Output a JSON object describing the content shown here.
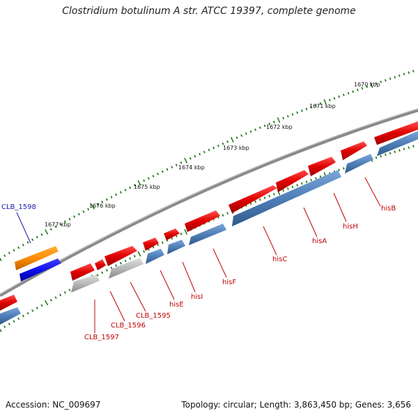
{
  "title": "Clostridium botulinum A str. ATCC 19397, complete genome",
  "footer": {
    "accession": "Accession: NC_009697",
    "topology": "Topology: circular; Length: 3,863,450 bp; Genes: 3,656"
  },
  "ruler": {
    "unit": "kbp",
    "labels": [
      "1670 kbp",
      "1671 kbp",
      "1672 kbp",
      "1673 kbp",
      "1674 kbp",
      "1675 kbp",
      "1676 kbp",
      "1677 kbp"
    ]
  },
  "genes": [
    {
      "name": "hisB",
      "color": "#e00000",
      "secondary_color": "#4f7fb8"
    },
    {
      "name": "hisH",
      "color": "#e00000",
      "secondary_color": "#4f7fb8"
    },
    {
      "name": "hisA",
      "color": "#e00000",
      "secondary_color": "#4f7fb8"
    },
    {
      "name": "hisC",
      "color": "#e00000",
      "secondary_color": "#4f7fb8"
    },
    {
      "name": "hisF",
      "color": "#e00000",
      "secondary_color": "#4f7fb8"
    },
    {
      "name": "hisI",
      "color": "#e00000",
      "secondary_color": "#4f7fb8"
    },
    {
      "name": "hisE",
      "color": "#e00000",
      "secondary_color": "#4f7fb8"
    },
    {
      "name": "CLB_1595",
      "color": "#e00000",
      "secondary_color": "#b0b0b0"
    },
    {
      "name": "CLB_1596",
      "color": "#e00000",
      "secondary_color": "#b0b0b0"
    },
    {
      "name": "CLB_1597",
      "color": "#e00000",
      "secondary_color": "#b0b0b0"
    },
    {
      "name": "CLB_1598",
      "color": "#ff8c00",
      "secondary_color": "#1010ee"
    }
  ],
  "colors": {
    "backbone": "#707070",
    "tick_green": "#2a7a20",
    "label_red": "#c00000",
    "label_blue": "#1a1aa8"
  }
}
